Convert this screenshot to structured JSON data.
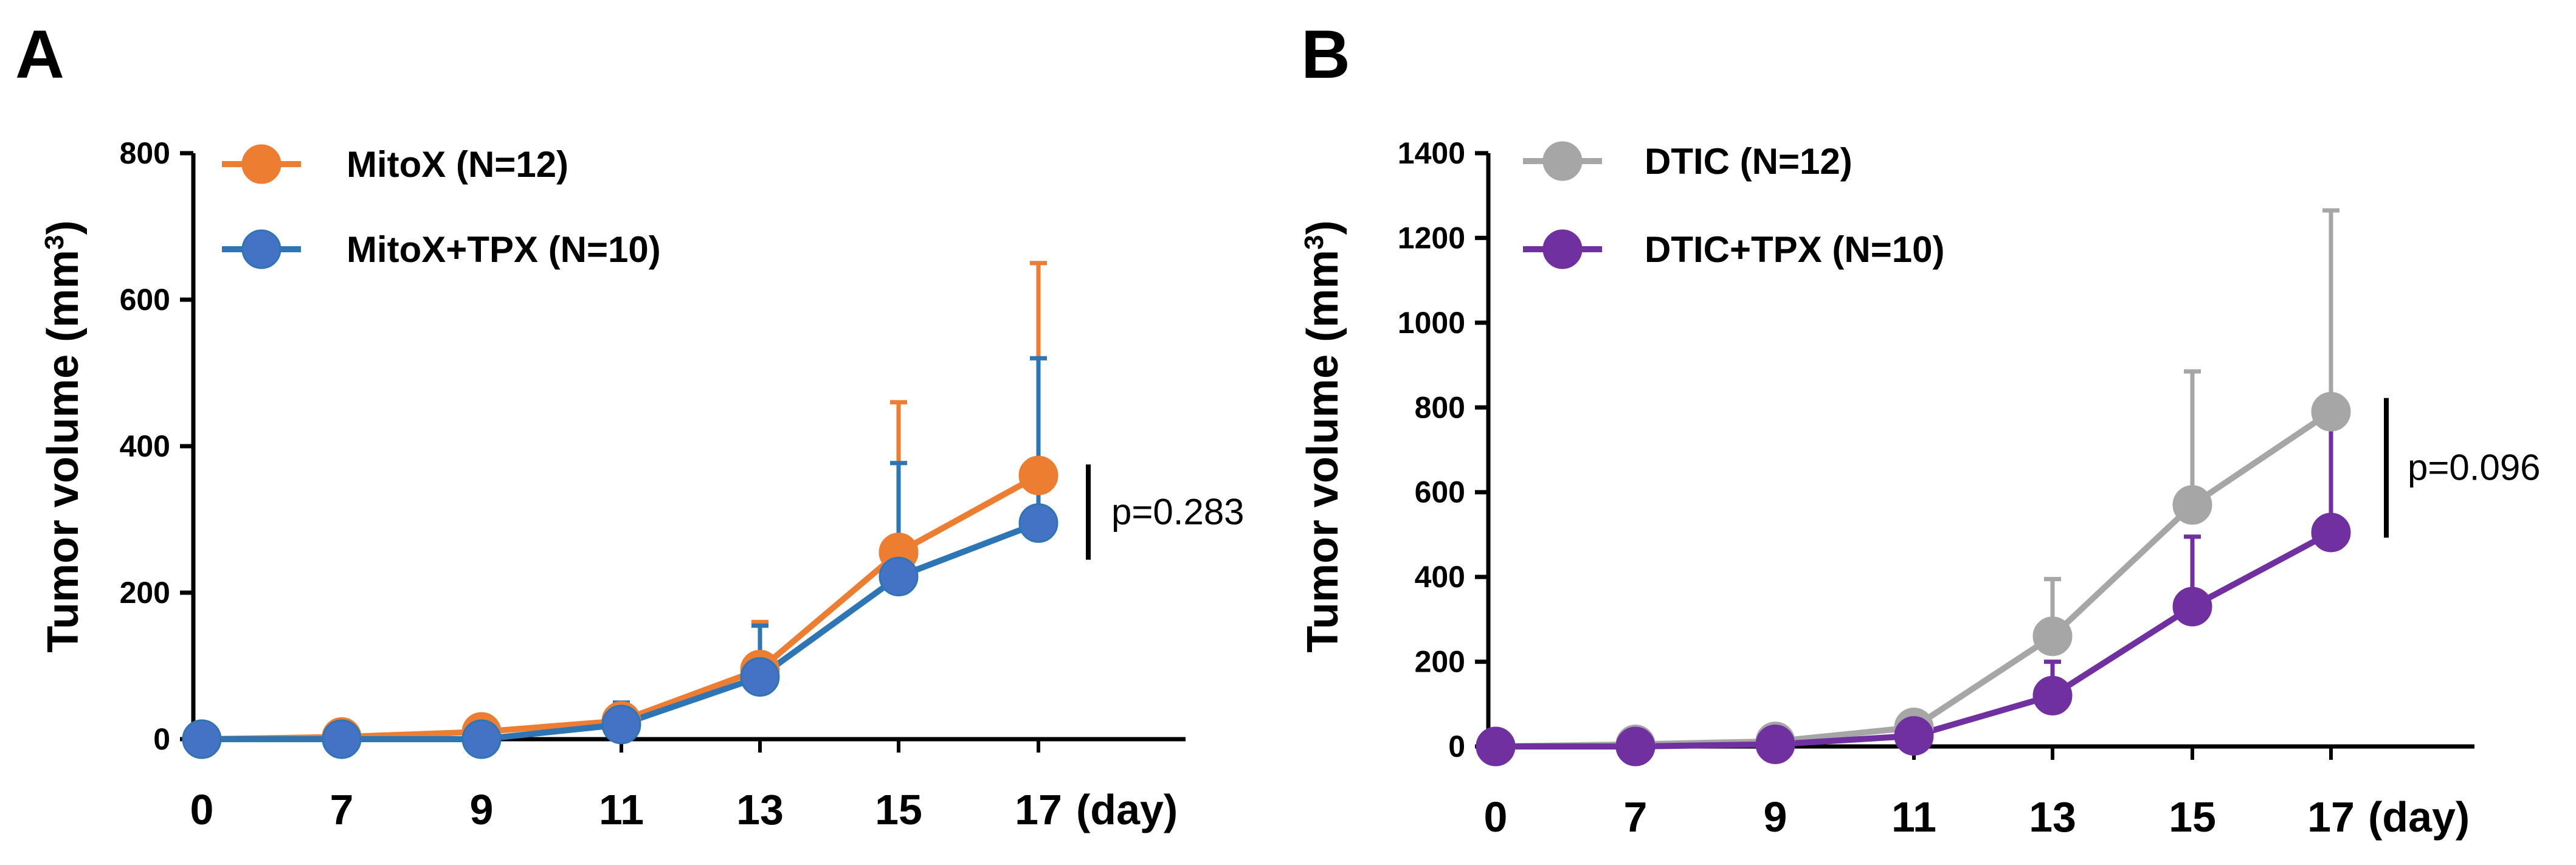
{
  "chart_data": [
    {
      "panel": "A",
      "type": "line",
      "ylabel": "Tumor volume (mm",
      "ylabel_sup": "3",
      "ylabel_close": ")",
      "xlabel": "(day)",
      "categories": [
        "0",
        "7",
        "9",
        "11",
        "13",
        "15",
        "17"
      ],
      "yticks": [
        "0",
        "200",
        "400",
        "600",
        "800"
      ],
      "ylim": [
        0,
        800
      ],
      "series": [
        {
          "name": "MitoX (N=12)",
          "color": "#ed7d31",
          "values": [
            0,
            3,
            10,
            25,
            95,
            255,
            360
          ],
          "errors": [
            0,
            0,
            0,
            0,
            65,
            205,
            290
          ]
        },
        {
          "name": "MitoX+TPX (N=10)",
          "color": "#2e75b6",
          "marker_color": "#4472c4",
          "values": [
            0,
            0,
            0,
            20,
            85,
            222,
            295
          ],
          "errors": [
            0,
            0,
            0,
            30,
            70,
            155,
            225
          ]
        }
      ],
      "annotation": "p=0.283",
      "bracket": [
        365,
        255
      ]
    },
    {
      "panel": "B",
      "type": "line",
      "ylabel": "Tumor volume (mm",
      "ylabel_sup": "3",
      "ylabel_close": ")",
      "xlabel": "(day)",
      "categories": [
        "0",
        "7",
        "9",
        "11",
        "13",
        "15",
        "17"
      ],
      "yticks": [
        "0",
        "200",
        "400",
        "600",
        "800",
        "1000",
        "1200",
        "1400"
      ],
      "ylim": [
        0,
        1400
      ],
      "series": [
        {
          "name": "DTIC (N=12)",
          "color": "#a6a6a6",
          "values": [
            0,
            5,
            12,
            45,
            260,
            570,
            790
          ],
          "errors": [
            0,
            0,
            0,
            0,
            135,
            315,
            475
          ]
        },
        {
          "name": "DTIC+TPX (N=10)",
          "color": "#7030a0",
          "values": [
            0,
            0,
            5,
            25,
            120,
            330,
            505
          ],
          "errors": [
            0,
            0,
            0,
            0,
            80,
            165,
            290
          ]
        }
      ],
      "annotation": "p=0.096",
      "bracket": [
        805,
        510
      ]
    }
  ]
}
